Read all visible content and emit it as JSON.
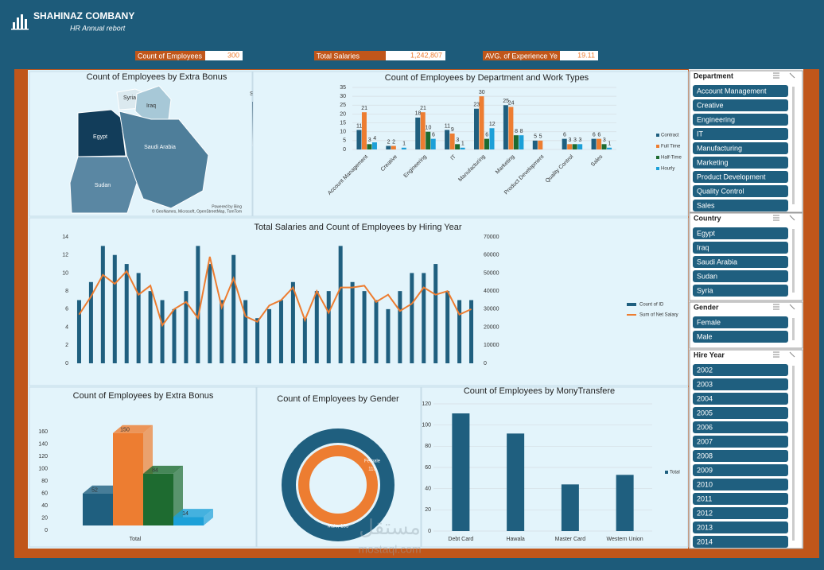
{
  "header": {
    "title": "SHAHINAZ COMBANY",
    "subtitle": "HR Annual rebort"
  },
  "kpis": [
    {
      "label": "Count of Employees",
      "value": 300
    },
    {
      "label": "Total Salaries",
      "value": 1242807,
      "value_label": "1,242,807"
    },
    {
      "label": "AVG. of Experience Ye",
      "value": 19.11
    }
  ],
  "slicers": [
    {
      "title": "Department",
      "items": [
        "Account Management",
        "Creative",
        "Engineering",
        "IT",
        "Manufacturing",
        "Marketing",
        "Product Development",
        "Quality Control",
        "Sales"
      ]
    },
    {
      "title": "Country",
      "items": [
        "Egypt",
        "Iraq",
        "Saudi Arabia",
        "Sudan",
        "Syria"
      ]
    },
    {
      "title": "Gender",
      "items": [
        "Female",
        "Male"
      ]
    },
    {
      "title": "Hire Year",
      "items": [
        "2002",
        "2003",
        "2004",
        "2005",
        "2006",
        "2007",
        "2008",
        "2009",
        "2010",
        "2011",
        "2012",
        "2013",
        "2014"
      ]
    }
  ],
  "watermark": [
    "مستقل",
    "mostaql.com"
  ],
  "chart_data": [
    {
      "type": "map",
      "title": "Count of Employees by Extra Bonus",
      "legend_title": "Sum of ID",
      "legend_max": 114550,
      "legend_min": 17170,
      "categories": [
        "Syria",
        "Iraq",
        "Egypt",
        "Saudi Arabia",
        "Sudan"
      ],
      "credits": [
        "Powered by Bing",
        "© GeoNames, Microsoft, OpenStreetMap, TomTom"
      ]
    },
    {
      "type": "grouped-bar",
      "title": "Count of Employees by Department and Work Types",
      "categories": [
        "Account Management",
        "Creative",
        "Engineering",
        "IT",
        "Manufacturing",
        "Marketing",
        "Product Development",
        "Quality Control",
        "Sales"
      ],
      "series": [
        {
          "name": "Contract",
          "color": "#1f5f7f",
          "values": [
            11,
            2,
            18,
            11,
            23,
            25,
            5,
            6,
            6
          ]
        },
        {
          "name": "Full Time",
          "color": "#ed7d31",
          "values": [
            21,
            2,
            21,
            9,
            30,
            24,
            5,
            3,
            6
          ]
        },
        {
          "name": "Half-Time",
          "color": "#1e6b30",
          "values": [
            3,
            null,
            10,
            3,
            6,
            8,
            null,
            3,
            3
          ]
        },
        {
          "name": "Hourly",
          "color": "#1ca0d8",
          "values": [
            4,
            1,
            6,
            1,
            12,
            8,
            null,
            3,
            1
          ]
        }
      ],
      "ylim": [
        0,
        35
      ],
      "yticks": [
        0,
        5,
        10,
        15,
        20,
        25,
        30,
        35
      ],
      "grid": true
    },
    {
      "type": "bar-line",
      "title": "Total Salaries and Count of Employees by Hiring Year",
      "categories": [
        null,
        null,
        null,
        null,
        null,
        null,
        null,
        null,
        null,
        null,
        null,
        null,
        null,
        null,
        null,
        null,
        null,
        null,
        null,
        null,
        null,
        null,
        null,
        null,
        null,
        null,
        null,
        null,
        null,
        null,
        null,
        null,
        null,
        null
      ],
      "series": [
        {
          "name": "Count of ID",
          "color": "#1f5f7f",
          "values": [
            7,
            9,
            13,
            12,
            11,
            10,
            8,
            7,
            6,
            8,
            13,
            11,
            7,
            12,
            7,
            5,
            6,
            7,
            9,
            5,
            8,
            8,
            13,
            9,
            8,
            7,
            6,
            8,
            10,
            10,
            11,
            8,
            7,
            7
          ]
        },
        {
          "name": "Sum of Net Salary",
          "color": "#ed7d31",
          "axis": "y2",
          "values": [
            27000,
            37000,
            49000,
            44000,
            51000,
            38000,
            43000,
            21000,
            30000,
            34000,
            25000,
            59000,
            31000,
            47000,
            26000,
            23000,
            32000,
            35000,
            42000,
            24000,
            40000,
            28000,
            42000,
            42000,
            43000,
            34000,
            38000,
            29000,
            33000,
            42000,
            38000,
            40000,
            27000,
            30000
          ]
        }
      ],
      "ylim": [
        0,
        14
      ],
      "yticks": [
        0,
        2,
        4,
        6,
        8,
        10,
        12,
        14
      ],
      "y2lim": [
        0,
        70000
      ],
      "y2ticks": [
        0,
        10000,
        20000,
        30000,
        40000,
        50000,
        60000,
        70000
      ]
    },
    {
      "type": "bar-3d",
      "title": "Count of Employees by Extra Bonus",
      "categories": [
        "Total"
      ],
      "series": [
        {
          "color": "#1f5f7f",
          "values": [
            52
          ]
        },
        {
          "color": "#ed7d31",
          "values": [
            150
          ]
        },
        {
          "color": "#1e6b30",
          "values": [
            84
          ]
        },
        {
          "color": "#1ca0d8",
          "values": [
            14
          ]
        }
      ],
      "ylim": [
        0,
        160
      ],
      "yticks": [
        0,
        20,
        40,
        60,
        80,
        100,
        120,
        140,
        160
      ]
    },
    {
      "type": "donut",
      "title": "Count of Employees by Gender",
      "categories": [
        "Female",
        "Male"
      ],
      "values": [
        115,
        185
      ],
      "value_labels": [
        "115",
        "Male, 185"
      ],
      "colors": [
        "#ed7d31",
        "#1f5f7f"
      ]
    },
    {
      "type": "bar",
      "title": "Count of Employees by MonyTransfere",
      "categories": [
        "Debt Card",
        "Hawala",
        "Master Card",
        "Western Union"
      ],
      "series": [
        {
          "name": "Total",
          "color": "#1f5f7f",
          "values": [
            111,
            92,
            44,
            53
          ]
        }
      ],
      "ylim": [
        0,
        120
      ],
      "yticks": [
        0,
        20,
        40,
        60,
        80,
        100,
        120
      ],
      "grid": true
    }
  ]
}
